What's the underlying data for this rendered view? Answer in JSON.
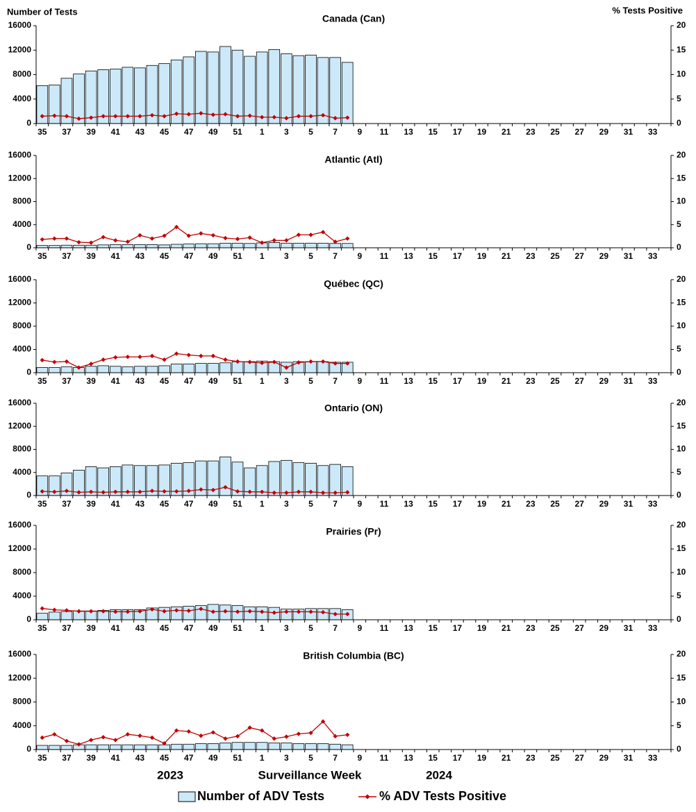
{
  "chart_data": [
    {
      "type": "bar",
      "title": "Canada (Can)",
      "ylabel": "Number of Tests",
      "y2label": "% Tests Positive",
      "categories": [
        "35",
        null,
        "37",
        null,
        "39",
        null,
        "41",
        null,
        "43",
        null,
        "45",
        null,
        "47",
        null,
        "49",
        null,
        "51",
        null,
        "1",
        null,
        "3",
        null,
        "5",
        null,
        "7",
        null,
        "9",
        null,
        "11",
        null,
        "13",
        null,
        "15",
        null,
        "17",
        null,
        "19",
        null,
        "21",
        null,
        "23",
        null,
        "25",
        null,
        "27",
        null,
        "29",
        null,
        "31",
        null,
        "33",
        null
      ],
      "ylim": [
        0,
        16000
      ],
      "yticks": [
        0,
        4000,
        8000,
        12000,
        16000
      ],
      "y2lim": [
        0,
        20
      ],
      "y2ticks": [
        0,
        5,
        10,
        15,
        20
      ],
      "series": [
        {
          "name": "Number of ADV Tests",
          "color": "#cce9f9",
          "values": [
            6200,
            6300,
            7400,
            8100,
            8600,
            8800,
            8900,
            9200,
            9100,
            9500,
            9800,
            10400,
            10900,
            11800,
            11700,
            12600,
            12000,
            11000,
            11700,
            12100,
            11400,
            11100,
            11200,
            10800,
            10800,
            10000,
            null,
            null,
            null,
            null,
            null,
            null,
            null,
            null,
            null,
            null,
            null,
            null,
            null,
            null,
            null,
            null,
            null,
            null,
            null,
            null,
            null,
            null,
            null,
            null,
            null,
            null
          ]
        },
        {
          "name": "% ADV Tests Positive",
          "type": "line",
          "axis": "y2",
          "color": "#c00000",
          "values": [
            1.5,
            1.6,
            1.5,
            1.0,
            1.2,
            1.5,
            1.5,
            1.5,
            1.5,
            1.7,
            1.5,
            2.0,
            1.9,
            2.1,
            1.8,
            1.9,
            1.5,
            1.6,
            1.3,
            1.3,
            1.1,
            1.5,
            1.5,
            1.7,
            1.1,
            1.2,
            null,
            null,
            null,
            null,
            null,
            null,
            null,
            null,
            null,
            null,
            null,
            null,
            null,
            null,
            null,
            null,
            null,
            null,
            null,
            null,
            null,
            null,
            null,
            null,
            null,
            null
          ]
        }
      ]
    },
    {
      "type": "bar",
      "title": "Atlantic (Atl)",
      "categories": [
        "35",
        null,
        "37",
        null,
        "39",
        null,
        "41",
        null,
        "43",
        null,
        "45",
        null,
        "47",
        null,
        "49",
        null,
        "51",
        null,
        "1",
        null,
        "3",
        null,
        "5",
        null,
        "7",
        null,
        "9",
        null,
        "11",
        null,
        "13",
        null,
        "15",
        null,
        "17",
        null,
        "19",
        null,
        "21",
        null,
        "23",
        null,
        "25",
        null,
        "27",
        null,
        "29",
        null,
        "31",
        null,
        "33",
        null
      ],
      "ylim": [
        0,
        16000
      ],
      "yticks": [
        0,
        4000,
        8000,
        12000,
        16000
      ],
      "y2lim": [
        0,
        20
      ],
      "y2ticks": [
        0,
        5,
        10,
        15,
        20
      ],
      "series": [
        {
          "name": "Number of ADV Tests",
          "color": "#cce9f9",
          "values": [
            400,
            400,
            450,
            450,
            450,
            500,
            550,
            550,
            550,
            550,
            500,
            600,
            650,
            700,
            700,
            800,
            800,
            750,
            850,
            900,
            800,
            800,
            800,
            800,
            750,
            750,
            null,
            null,
            null,
            null,
            null,
            null,
            null,
            null,
            null,
            null,
            null,
            null,
            null,
            null,
            null,
            null,
            null,
            null,
            null,
            null,
            null,
            null,
            null,
            null,
            null,
            null
          ]
        },
        {
          "name": "% ADV Tests Positive",
          "type": "line",
          "axis": "y2",
          "color": "#c00000",
          "values": [
            1.8,
            2.0,
            2.0,
            1.2,
            1.1,
            2.3,
            1.6,
            1.3,
            2.7,
            2.0,
            2.6,
            4.5,
            2.6,
            3.1,
            2.7,
            2.1,
            1.9,
            2.2,
            1.1,
            1.6,
            1.6,
            2.8,
            2.8,
            3.4,
            1.3,
            2.0,
            null,
            null,
            null,
            null,
            null,
            null,
            null,
            null,
            null,
            null,
            null,
            null,
            null,
            null,
            null,
            null,
            null,
            null,
            null,
            null,
            null,
            null,
            null,
            null,
            null,
            null
          ]
        }
      ]
    },
    {
      "type": "bar",
      "title": "Québec (QC)",
      "categories": [
        "35",
        null,
        "37",
        null,
        "39",
        null,
        "41",
        null,
        "43",
        null,
        "45",
        null,
        "47",
        null,
        "49",
        null,
        "51",
        null,
        "1",
        null,
        "3",
        null,
        "5",
        null,
        "7",
        null,
        "9",
        null,
        "11",
        null,
        "13",
        null,
        "15",
        null,
        "17",
        null,
        "19",
        null,
        "21",
        null,
        "23",
        null,
        "25",
        null,
        "27",
        null,
        "29",
        null,
        "31",
        null,
        "33",
        null
      ],
      "ylim": [
        0,
        16000
      ],
      "yticks": [
        0,
        4000,
        8000,
        12000,
        16000
      ],
      "y2lim": [
        0,
        20
      ],
      "y2ticks": [
        0,
        5,
        10,
        15,
        20
      ],
      "series": [
        {
          "name": "Number of ADV Tests",
          "color": "#cce9f9",
          "values": [
            900,
            900,
            1000,
            900,
            1100,
            1200,
            1100,
            1000,
            1100,
            1100,
            1200,
            1500,
            1500,
            1600,
            1600,
            1700,
            1900,
            1900,
            2000,
            1900,
            1800,
            1900,
            1900,
            1900,
            1800,
            1800,
            null,
            null,
            null,
            null,
            null,
            null,
            null,
            null,
            null,
            null,
            null,
            null,
            null,
            null,
            null,
            null,
            null,
            null,
            null,
            null,
            null,
            null,
            null,
            null,
            null,
            null
          ]
        },
        {
          "name": "% ADV Tests Positive",
          "type": "line",
          "axis": "y2",
          "color": "#c00000",
          "values": [
            2.7,
            2.3,
            2.4,
            1.1,
            1.9,
            2.8,
            3.3,
            3.4,
            3.4,
            3.6,
            2.8,
            4.1,
            3.8,
            3.6,
            3.6,
            2.8,
            2.4,
            2.3,
            2.1,
            2.3,
            1.1,
            2.2,
            2.4,
            2.4,
            2.0,
            2.0,
            null,
            null,
            null,
            null,
            null,
            null,
            null,
            null,
            null,
            null,
            null,
            null,
            null,
            null,
            null,
            null,
            null,
            null,
            null,
            null,
            null,
            null,
            null,
            null,
            null,
            null
          ]
        }
      ]
    },
    {
      "type": "bar",
      "title": "Ontario (ON)",
      "categories": [
        "35",
        null,
        "37",
        null,
        "39",
        null,
        "41",
        null,
        "43",
        null,
        "45",
        null,
        "47",
        null,
        "49",
        null,
        "51",
        null,
        "1",
        null,
        "3",
        null,
        "5",
        null,
        "7",
        null,
        "9",
        null,
        "11",
        null,
        "13",
        null,
        "15",
        null,
        "17",
        null,
        "19",
        null,
        "21",
        null,
        "23",
        null,
        "25",
        null,
        "27",
        null,
        "29",
        null,
        "31",
        null,
        "33",
        null
      ],
      "ylim": [
        0,
        16000
      ],
      "yticks": [
        0,
        4000,
        8000,
        12000,
        16000
      ],
      "y2lim": [
        0,
        20
      ],
      "y2ticks": [
        0,
        5,
        10,
        15,
        20
      ],
      "series": [
        {
          "name": "Number of ADV Tests",
          "color": "#cce9f9",
          "values": [
            3400,
            3400,
            3900,
            4400,
            5000,
            4800,
            5000,
            5300,
            5200,
            5200,
            5300,
            5600,
            5700,
            6000,
            6000,
            6700,
            5800,
            4800,
            5200,
            5900,
            6100,
            5700,
            5600,
            5200,
            5400,
            5000,
            null,
            null,
            null,
            null,
            null,
            null,
            null,
            null,
            null,
            null,
            null,
            null,
            null,
            null,
            null,
            null,
            null,
            null,
            null,
            null,
            null,
            null,
            null,
            null,
            null,
            null
          ]
        },
        {
          "name": "% ADV Tests Positive",
          "type": "line",
          "axis": "y2",
          "color": "#c00000",
          "values": [
            0.9,
            0.8,
            1.0,
            0.7,
            0.8,
            0.7,
            0.8,
            0.8,
            0.8,
            1.0,
            0.9,
            0.9,
            1.0,
            1.3,
            1.2,
            1.8,
            0.9,
            0.8,
            0.8,
            0.6,
            0.6,
            0.8,
            0.8,
            0.6,
            0.6,
            0.7,
            null,
            null,
            null,
            null,
            null,
            null,
            null,
            null,
            null,
            null,
            null,
            null,
            null,
            null,
            null,
            null,
            null,
            null,
            null,
            null,
            null,
            null,
            null,
            null,
            null,
            null
          ]
        }
      ]
    },
    {
      "type": "bar",
      "title": "Prairies (Pr)",
      "categories": [
        "35",
        null,
        "37",
        null,
        "39",
        null,
        "41",
        null,
        "43",
        null,
        "45",
        null,
        "47",
        null,
        "49",
        null,
        "51",
        null,
        "1",
        null,
        "3",
        null,
        "5",
        null,
        "7",
        null,
        "9",
        null,
        "11",
        null,
        "13",
        null,
        "15",
        null,
        "17",
        null,
        "19",
        null,
        "21",
        null,
        "23",
        null,
        "25",
        null,
        "27",
        null,
        "29",
        null,
        "31",
        null,
        "33",
        null
      ],
      "ylim": [
        0,
        16000
      ],
      "yticks": [
        0,
        4000,
        8000,
        12000,
        16000
      ],
      "y2lim": [
        0,
        20
      ],
      "y2ticks": [
        0,
        5,
        10,
        15,
        20
      ],
      "series": [
        {
          "name": "Number of ADV Tests",
          "color": "#cce9f9",
          "values": [
            1100,
            1300,
            1400,
            1500,
            1500,
            1600,
            1700,
            1700,
            1700,
            2000,
            2100,
            2200,
            2300,
            2400,
            2600,
            2500,
            2400,
            2200,
            2200,
            2100,
            1800,
            1800,
            1900,
            1900,
            1900,
            1700,
            null,
            null,
            null,
            null,
            null,
            null,
            null,
            null,
            null,
            null,
            null,
            null,
            null,
            null,
            null,
            null,
            null,
            null,
            null,
            null,
            null,
            null,
            null,
            null,
            null,
            null
          ]
        },
        {
          "name": "% ADV Tests Positive",
          "type": "line",
          "axis": "y2",
          "color": "#c00000",
          "values": [
            2.4,
            2.1,
            2.0,
            1.8,
            1.8,
            1.8,
            1.7,
            1.7,
            1.8,
            2.2,
            1.8,
            2.0,
            1.9,
            2.3,
            1.7,
            1.8,
            1.7,
            1.8,
            1.7,
            1.5,
            1.7,
            1.7,
            1.7,
            1.6,
            1.2,
            1.2,
            null,
            null,
            null,
            null,
            null,
            null,
            null,
            null,
            null,
            null,
            null,
            null,
            null,
            null,
            null,
            null,
            null,
            null,
            null,
            null,
            null,
            null,
            null,
            null,
            null,
            null
          ]
        }
      ]
    },
    {
      "type": "bar",
      "title": "British Columbia (BC)",
      "xlabel": "Surveillance Week",
      "annotations": [
        "2023",
        "2024"
      ],
      "categories": [
        "35",
        null,
        "37",
        null,
        "39",
        null,
        "41",
        null,
        "43",
        null,
        "45",
        null,
        "47",
        null,
        "49",
        null,
        "51",
        null,
        "1",
        null,
        "3",
        null,
        "5",
        null,
        "7",
        null,
        "9",
        null,
        "11",
        null,
        "13",
        null,
        "15",
        null,
        "17",
        null,
        "19",
        null,
        "21",
        null,
        "23",
        null,
        "25",
        null,
        "27",
        null,
        "29",
        null,
        "31",
        null,
        "33",
        null
      ],
      "ylim": [
        0,
        16000
      ],
      "yticks": [
        0,
        4000,
        8000,
        12000,
        16000
      ],
      "y2lim": [
        0,
        20
      ],
      "y2ticks": [
        0,
        5,
        10,
        15,
        20
      ],
      "series": [
        {
          "name": "Number of ADV Tests",
          "color": "#cce9f9",
          "values": [
            700,
            700,
            700,
            800,
            800,
            800,
            800,
            800,
            800,
            800,
            800,
            900,
            900,
            1000,
            1000,
            1100,
            1200,
            1200,
            1200,
            1100,
            1100,
            1000,
            1000,
            1000,
            900,
            800,
            null,
            null,
            null,
            null,
            null,
            null,
            null,
            null,
            null,
            null,
            null,
            null,
            null,
            null,
            null,
            null,
            null,
            null,
            null,
            null,
            null,
            null,
            null,
            null,
            null,
            null
          ]
        },
        {
          "name": "% ADV Tests Positive",
          "type": "line",
          "axis": "y2",
          "color": "#c00000",
          "values": [
            2.5,
            3.2,
            1.8,
            1.1,
            2.0,
            2.6,
            2.0,
            3.2,
            2.9,
            2.5,
            1.3,
            4.0,
            3.8,
            2.9,
            3.6,
            2.3,
            2.8,
            4.6,
            4.0,
            2.3,
            2.7,
            3.3,
            3.5,
            5.9,
            2.8,
            3.1,
            null,
            null,
            null,
            null,
            null,
            null,
            null,
            null,
            null,
            null,
            null,
            null,
            null,
            null,
            null,
            null,
            null,
            null,
            null,
            null,
            null,
            null,
            null,
            null,
            null,
            null
          ]
        }
      ]
    }
  ]
}
